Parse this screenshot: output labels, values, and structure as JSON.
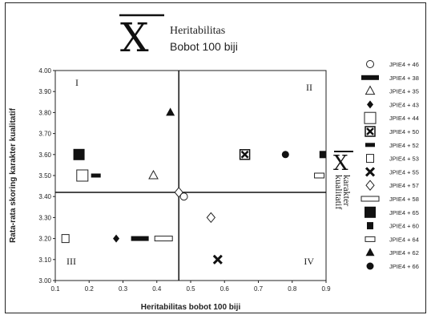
{
  "header": {
    "symbol": "X",
    "line1": "Heritabilitas",
    "line2": "Bobot 100 biji"
  },
  "side_label": {
    "symbol": "X",
    "line1": "karakter",
    "line2": "kualitatif"
  },
  "chart_data": {
    "type": "scatter",
    "xlabel": "Heritabilitas bobot 100 biji",
    "ylabel": "Rata-rata skoring karakter kualitatif",
    "xlim": [
      0.1,
      0.9
    ],
    "ylim": [
      3.0,
      4.0
    ],
    "x_ticks": [
      "0.1",
      "0.2",
      "0.3",
      "0.4",
      "0.5",
      "0.6",
      "0.7",
      "0.8",
      "0.9"
    ],
    "y_ticks": [
      "3.00",
      "3.10",
      "3.20",
      "3.30",
      "3.40",
      "3.50",
      "3.60",
      "3.70",
      "3.80",
      "3.90",
      "4.00"
    ],
    "mean_x": 0.465,
    "mean_y": 3.42,
    "grid": false,
    "legend_position": "right",
    "quadrants": [
      "I",
      "II",
      "III",
      "IV"
    ],
    "series": [
      {
        "name": "JPIE4 + 46",
        "marker": "circle-open",
        "points": [
          [
            0.48,
            3.4
          ]
        ]
      },
      {
        "name": "JPIE4 + 38",
        "marker": "bar-thick",
        "points": [
          [
            0.35,
            3.2
          ]
        ]
      },
      {
        "name": "JPIE4 + 35",
        "marker": "triangle-open",
        "points": [
          [
            0.39,
            3.5
          ]
        ]
      },
      {
        "name": "JPIE4 + 43",
        "marker": "diamond-filled",
        "points": [
          [
            0.28,
            3.2
          ]
        ]
      },
      {
        "name": "JPIE4 + 44",
        "marker": "square-open",
        "points": [
          [
            0.18,
            3.5
          ]
        ]
      },
      {
        "name": "JPIE4 + 50",
        "marker": "square-x",
        "points": [
          [
            0.66,
            3.6
          ]
        ]
      },
      {
        "name": "JPIE4 + 52",
        "marker": "bar-filled",
        "points": [
          [
            0.22,
            3.5
          ]
        ]
      },
      {
        "name": "JPIE4 + 53",
        "marker": "square-open-small",
        "points": [
          [
            0.13,
            3.2
          ]
        ]
      },
      {
        "name": "JPIE4 + 55",
        "marker": "x-thick",
        "points": [
          [
            0.58,
            3.1
          ]
        ]
      },
      {
        "name": "JPIE4 + 57",
        "marker": "diamond-open",
        "points": [
          [
            0.56,
            3.3
          ]
        ]
      },
      {
        "name": "JPIE4 + 58",
        "marker": "rect-open-wide",
        "points": [
          [
            0.42,
            3.2
          ]
        ]
      },
      {
        "name": "JPIE4 + 65",
        "marker": "square-filled",
        "points": [
          [
            0.17,
            3.6
          ]
        ]
      },
      {
        "name": "JPIE4 + 60",
        "marker": "square-filled-small",
        "points": [
          [
            0.89,
            3.6
          ]
        ]
      },
      {
        "name": "JPIE4 + 64",
        "marker": "rect-open",
        "points": [
          [
            0.88,
            3.5
          ]
        ]
      },
      {
        "name": "JPIE4 + 62",
        "marker": "triangle-filled",
        "points": [
          [
            0.44,
            3.8
          ]
        ]
      },
      {
        "name": "JPIE4 + 66",
        "marker": "circle-filled",
        "points": [
          [
            0.78,
            3.6
          ]
        ]
      }
    ],
    "extra_points": [
      {
        "marker": "diamond-open",
        "x": 0.465,
        "y": 3.42
      }
    ]
  }
}
